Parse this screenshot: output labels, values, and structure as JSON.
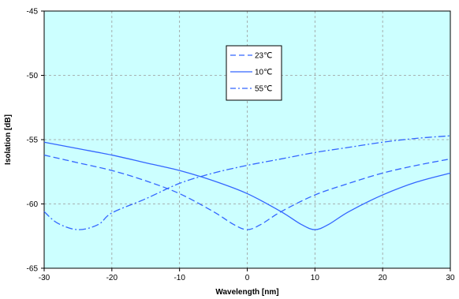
{
  "chart_data": {
    "type": "line",
    "xlabel": "Wavelength [nm]",
    "ylabel": "Isolation [dB]",
    "xlim": [
      -30,
      30
    ],
    "ylim": [
      -65,
      -45
    ],
    "xticks": [
      -30,
      -20,
      -10,
      0,
      10,
      20,
      30
    ],
    "yticks": [
      -45,
      -50,
      -55,
      -60,
      -65
    ],
    "grid": true,
    "legend_position": "top-center",
    "plot_background": "#ccffff",
    "line_color": "#3366ff",
    "series": [
      {
        "name": "23℃",
        "dash": "dashed",
        "points": [
          [
            -30,
            -56.2
          ],
          [
            -25,
            -56.8
          ],
          [
            -20,
            -57.4
          ],
          [
            -15,
            -58.2
          ],
          [
            -10,
            -59.2
          ],
          [
            -5,
            -60.6
          ],
          [
            -2,
            -61.6
          ],
          [
            0,
            -62.0
          ],
          [
            2,
            -61.6
          ],
          [
            5,
            -60.6
          ],
          [
            10,
            -59.3
          ],
          [
            15,
            -58.4
          ],
          [
            20,
            -57.6
          ],
          [
            25,
            -57.0
          ],
          [
            30,
            -56.5
          ]
        ]
      },
      {
        "name": "10℃",
        "dash": "solid",
        "points": [
          [
            -30,
            -55.2
          ],
          [
            -25,
            -55.7
          ],
          [
            -20,
            -56.2
          ],
          [
            -15,
            -56.8
          ],
          [
            -10,
            -57.4
          ],
          [
            -5,
            -58.2
          ],
          [
            0,
            -59.2
          ],
          [
            5,
            -60.6
          ],
          [
            8,
            -61.6
          ],
          [
            10,
            -62.0
          ],
          [
            12,
            -61.6
          ],
          [
            15,
            -60.6
          ],
          [
            20,
            -59.3
          ],
          [
            25,
            -58.3
          ],
          [
            30,
            -57.6
          ]
        ]
      },
      {
        "name": "55℃",
        "dash": "dashdot",
        "points": [
          [
            -30,
            -60.6
          ],
          [
            -28,
            -61.5
          ],
          [
            -25,
            -62.0
          ],
          [
            -22,
            -61.6
          ],
          [
            -20,
            -60.7
          ],
          [
            -15,
            -59.6
          ],
          [
            -10,
            -58.4
          ],
          [
            -5,
            -57.6
          ],
          [
            0,
            -57.0
          ],
          [
            5,
            -56.5
          ],
          [
            10,
            -56.0
          ],
          [
            15,
            -55.6
          ],
          [
            20,
            -55.2
          ],
          [
            25,
            -54.9
          ],
          [
            30,
            -54.7
          ]
        ]
      }
    ]
  }
}
